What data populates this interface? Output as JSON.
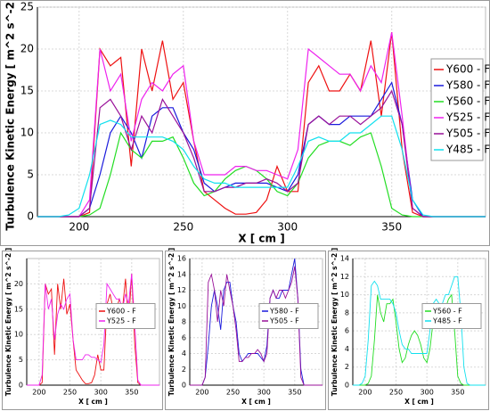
{
  "chart_data": [
    {
      "type": "line",
      "ylabel": "Turbulence Kinetic Energy [ m^2 s^-2 ]",
      "xlabel": "X [ cm ]",
      "xlim": [
        180,
        395
      ],
      "xticks": [
        200,
        250,
        300,
        350
      ],
      "ylim": [
        0,
        25
      ],
      "yticks": [
        0,
        5,
        10,
        15,
        20,
        25
      ],
      "grid": true,
      "legend": "right",
      "x": [
        180,
        185,
        190,
        195,
        200,
        205,
        210,
        215,
        220,
        225,
        230,
        235,
        240,
        245,
        250,
        255,
        260,
        265,
        270,
        275,
        280,
        285,
        290,
        295,
        300,
        305,
        310,
        315,
        320,
        325,
        330,
        335,
        340,
        345,
        350,
        355,
        360,
        365,
        370,
        375,
        380,
        385,
        390,
        395
      ],
      "series": [
        {
          "name": "Y600 - F",
          "color": "#ee1111",
          "values": [
            0,
            0,
            0,
            0,
            0,
            0.5,
            20,
            18,
            19,
            6,
            20,
            15,
            21,
            14,
            16,
            9,
            3,
            2,
            1,
            0.3,
            0.3,
            0.5,
            2,
            6,
            3,
            3,
            16,
            18,
            15,
            15,
            17,
            15,
            21,
            12,
            22,
            8,
            0.5,
            0,
            0,
            0,
            0,
            0,
            0,
            0
          ]
        },
        {
          "name": "Y580 - F",
          "color": "#1a1adc",
          "values": [
            0,
            0,
            0,
            0,
            0,
            1,
            5,
            10,
            12,
            10,
            7,
            12,
            13,
            13,
            10,
            8,
            4,
            3,
            3.5,
            4,
            4,
            4,
            4,
            3.5,
            3,
            5,
            11,
            12,
            11,
            11,
            12,
            12,
            12,
            14,
            16,
            11,
            2,
            0,
            0,
            0,
            0,
            0,
            0,
            0
          ]
        },
        {
          "name": "Y560 - F",
          "color": "#22dd22",
          "values": [
            0,
            0,
            0,
            0,
            0,
            0.2,
            1,
            5,
            10,
            8,
            7,
            9,
            9,
            9.5,
            7,
            4,
            2.5,
            3,
            4.5,
            5.5,
            6,
            5.5,
            4.5,
            3,
            2.5,
            4,
            7,
            8.5,
            9,
            9,
            8.5,
            9.5,
            10,
            6,
            1,
            0.2,
            0,
            0,
            0,
            0,
            0,
            0,
            0,
            0
          ]
        },
        {
          "name": "Y525 - F",
          "color": "#ee22ee",
          "values": [
            0,
            0,
            0,
            0,
            0,
            2,
            20,
            15,
            17,
            9,
            14,
            16,
            15,
            17,
            18,
            9,
            5,
            5,
            5,
            6,
            6,
            5.5,
            5.5,
            5,
            4.5,
            8,
            20,
            19,
            18,
            17,
            17,
            15,
            18,
            16,
            22,
            12,
            1,
            0,
            0,
            0,
            0,
            0,
            0,
            0
          ]
        },
        {
          "name": "Y505 - F",
          "color": "#991199",
          "values": [
            0,
            0,
            0,
            0,
            0,
            1,
            13,
            14,
            12,
            8,
            12,
            10,
            14,
            12,
            10,
            7,
            3,
            3,
            3.5,
            3.5,
            4,
            4,
            4.5,
            4,
            3,
            4,
            11,
            12,
            11,
            12,
            12,
            11,
            12,
            13,
            15,
            11,
            1,
            0,
            0,
            0,
            0,
            0,
            0,
            0
          ]
        },
        {
          "name": "Y485 - F",
          "color": "#11e0ee",
          "values": [
            0,
            0,
            0,
            0.2,
            1,
            5,
            11,
            11.5,
            11,
            9.5,
            9.5,
            9.5,
            9.5,
            9,
            8,
            6,
            4.5,
            4,
            4,
            3.5,
            3.5,
            3.5,
            3.5,
            3.5,
            3.5,
            6,
            9,
            9.5,
            9,
            9,
            10,
            10,
            11,
            12,
            12,
            8,
            2,
            0.2,
            0,
            0,
            0,
            0,
            0,
            0
          ]
        }
      ]
    },
    {
      "type": "line",
      "ylabel": "Turbulence Kinetic Energy [ m^2 s^-2 ]",
      "xlabel": "X [ cm ]",
      "xlim": [
        180,
        395
      ],
      "xticks": [
        200,
        250,
        300,
        350
      ],
      "ylim": [
        0,
        25
      ],
      "yticks": [
        0,
        5,
        10,
        15,
        20
      ],
      "grid": true,
      "legend": "right",
      "x": [
        180,
        185,
        190,
        195,
        200,
        205,
        210,
        215,
        220,
        225,
        230,
        235,
        240,
        245,
        250,
        255,
        260,
        265,
        270,
        275,
        280,
        285,
        290,
        295,
        300,
        305,
        310,
        315,
        320,
        325,
        330,
        335,
        340,
        345,
        350,
        355,
        360,
        365,
        370,
        375,
        380,
        385,
        390,
        395
      ],
      "series": [
        {
          "name": "Y600 - F",
          "color": "#ee1111",
          "values": [
            0,
            0,
            0,
            0,
            0,
            0.5,
            20,
            18,
            19,
            6,
            20,
            15,
            21,
            14,
            16,
            9,
            3,
            2,
            1,
            0.3,
            0.3,
            0.5,
            2,
            6,
            3,
            3,
            16,
            18,
            15,
            15,
            17,
            15,
            21,
            12,
            22,
            8,
            0.5,
            0,
            0,
            0,
            0,
            0,
            0,
            0
          ]
        },
        {
          "name": "Y525 - F",
          "color": "#ee22ee",
          "values": [
            0,
            0,
            0,
            0,
            0,
            2,
            20,
            15,
            17,
            9,
            14,
            16,
            15,
            17,
            18,
            9,
            5,
            5,
            5,
            6,
            6,
            5.5,
            5.5,
            5,
            4.5,
            8,
            20,
            19,
            18,
            17,
            17,
            15,
            18,
            16,
            22,
            12,
            1,
            0,
            0,
            0,
            0,
            0,
            0,
            0
          ]
        }
      ]
    },
    {
      "type": "line",
      "ylabel": "Turbulence Kinetic Energy [ m^2 s^-2 ]",
      "xlabel": "X [ cm ]",
      "xlim": [
        180,
        395
      ],
      "xticks": [
        200,
        250,
        300,
        350
      ],
      "ylim": [
        0,
        16
      ],
      "yticks": [
        0,
        2,
        4,
        6,
        8,
        10,
        12,
        14,
        16
      ],
      "grid": true,
      "legend": "right",
      "x": [
        180,
        185,
        190,
        195,
        200,
        205,
        210,
        215,
        220,
        225,
        230,
        235,
        240,
        245,
        250,
        255,
        260,
        265,
        270,
        275,
        280,
        285,
        290,
        295,
        300,
        305,
        310,
        315,
        320,
        325,
        330,
        335,
        340,
        345,
        350,
        355,
        360,
        365,
        370,
        375,
        380,
        385,
        390,
        395
      ],
      "series": [
        {
          "name": "Y580 - F",
          "color": "#1a1adc",
          "values": [
            0,
            0,
            0,
            0,
            0,
            1,
            5,
            10,
            12,
            10,
            7,
            12,
            13,
            13,
            10,
            8,
            4,
            3,
            3.5,
            4,
            4,
            4,
            4,
            3.5,
            3,
            5,
            11,
            12,
            11,
            11,
            12,
            12,
            12,
            14,
            16,
            11,
            2,
            0,
            0,
            0,
            0,
            0,
            0,
            0
          ]
        },
        {
          "name": "Y505 - F",
          "color": "#991199",
          "values": [
            0,
            0,
            0,
            0,
            0,
            1,
            13,
            14,
            12,
            8,
            12,
            10,
            14,
            12,
            10,
            7,
            3,
            3,
            3.5,
            3.5,
            4,
            4,
            4.5,
            4,
            3,
            4,
            11,
            12,
            11,
            12,
            12,
            11,
            12,
            13,
            15,
            11,
            1,
            0,
            0,
            0,
            0,
            0,
            0,
            0
          ]
        }
      ]
    },
    {
      "type": "line",
      "ylabel": "Turbulence Kinetic Energy [ m^2 s^-2 ]",
      "xlabel": "X [ cm ]",
      "xlim": [
        180,
        395
      ],
      "xticks": [
        200,
        250,
        300,
        350
      ],
      "ylim": [
        0,
        14
      ],
      "yticks": [
        0,
        2,
        4,
        6,
        8,
        10,
        12,
        14
      ],
      "grid": true,
      "legend": "right",
      "x": [
        180,
        185,
        190,
        195,
        200,
        205,
        210,
        215,
        220,
        225,
        230,
        235,
        240,
        245,
        250,
        255,
        260,
        265,
        270,
        275,
        280,
        285,
        290,
        295,
        300,
        305,
        310,
        315,
        320,
        325,
        330,
        335,
        340,
        345,
        350,
        355,
        360,
        365,
        370,
        375,
        380,
        385,
        390,
        395
      ],
      "series": [
        {
          "name": "Y560 - F",
          "color": "#22dd22",
          "values": [
            0,
            0,
            0,
            0,
            0,
            0.2,
            1,
            5,
            10,
            8,
            7,
            9,
            9,
            9.5,
            7,
            4,
            2.5,
            3,
            4.5,
            5.5,
            6,
            5.5,
            4.5,
            3,
            2.5,
            4,
            7,
            8.5,
            9,
            9,
            8.5,
            9.5,
            10,
            6,
            1,
            0.2,
            0,
            0,
            0,
            0,
            0,
            0,
            0,
            0
          ]
        },
        {
          "name": "Y485 - F",
          "color": "#11e0ee",
          "values": [
            0,
            0,
            0,
            0.2,
            1,
            5,
            11,
            11.5,
            11,
            9.5,
            9.5,
            9.5,
            9.5,
            9,
            8,
            6,
            4.5,
            4,
            4,
            3.5,
            3.5,
            3.5,
            3.5,
            3.5,
            3.5,
            6,
            9,
            9.5,
            9,
            9,
            10,
            10,
            11,
            12,
            12,
            8,
            2,
            0.2,
            0,
            0,
            0,
            0,
            0,
            0
          ]
        }
      ]
    }
  ]
}
